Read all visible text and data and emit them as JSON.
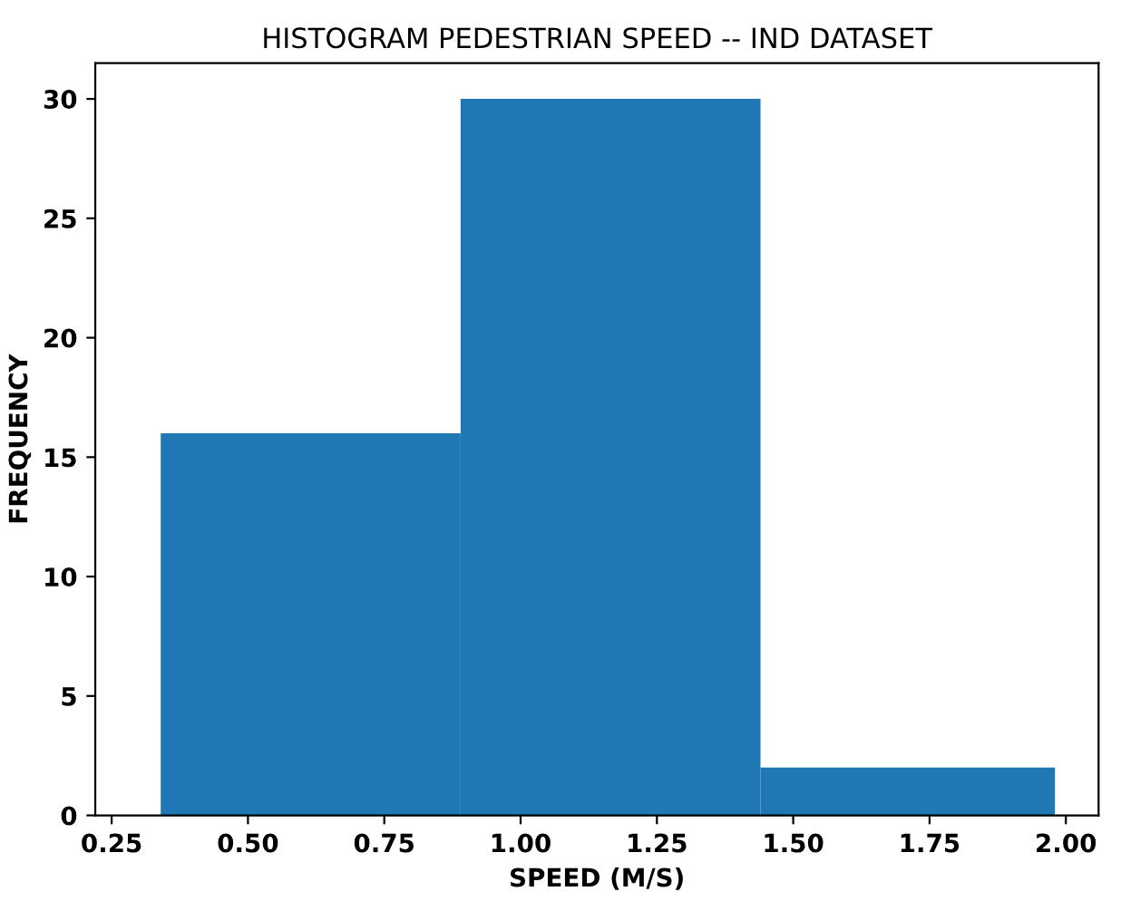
{
  "chart_data": {
    "type": "histogram",
    "title": "HISTOGRAM PEDESTRIAN SPEED -- IND DATASET",
    "xlabel": "SPEED (M/S)",
    "ylabel": "FREQUENCY",
    "bins": [
      0.34,
      0.89,
      1.44,
      1.98
    ],
    "values": [
      16,
      30,
      2
    ],
    "color": "#1f77b4",
    "xlim": [
      0.22,
      2.06
    ],
    "ylim": [
      0,
      31.5
    ],
    "xticks": [
      {
        "value": 0.25,
        "label": "0.25"
      },
      {
        "value": 0.5,
        "label": "0.50"
      },
      {
        "value": 0.75,
        "label": "0.75"
      },
      {
        "value": 1.0,
        "label": "1.00"
      },
      {
        "value": 1.25,
        "label": "1.25"
      },
      {
        "value": 1.5,
        "label": "1.50"
      },
      {
        "value": 1.75,
        "label": "1.75"
      },
      {
        "value": 2.0,
        "label": "2.00"
      }
    ],
    "yticks": [
      0,
      5,
      10,
      15,
      20,
      25,
      30
    ],
    "grid": false
  }
}
